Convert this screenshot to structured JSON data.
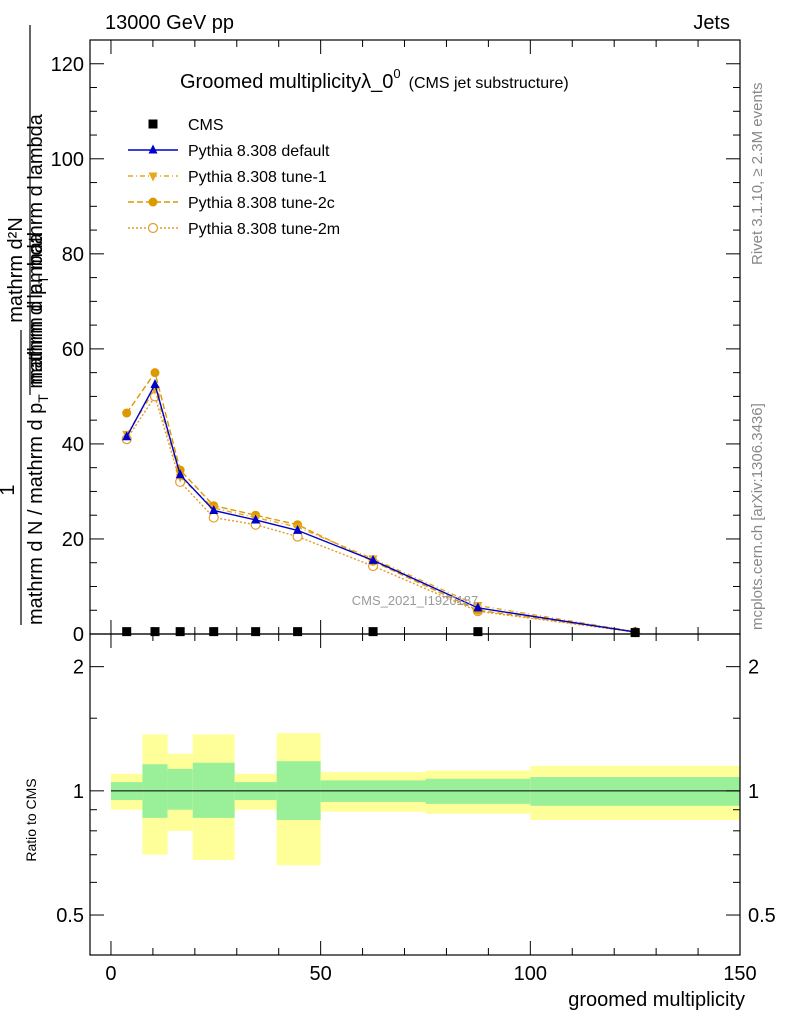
{
  "header": {
    "left": "13000 GeV pp",
    "right": "Jets"
  },
  "chart_data": {
    "type": "line",
    "title": "Groomed multiplicityλ_0",
    "title_superscript": "0",
    "title_suffix": "(CMS jet substructure)",
    "ylabel_numerator": "mathrm d²N",
    "ylabel_denominator_1": "mathrm d p",
    "ylabel_denominator_sub": "T",
    "ylabel_denominator_2": " mathrm d lambda",
    "ylabel_prefactor": "1",
    "ylabel_prefactor_den": "mathrm d N / mathrm d p",
    "ylabel_prefactor_sub": "T",
    "ylabel_prefactor_den_2": "mathrm d p",
    "ylabel_prefactor_sub_2": "T",
    "xlabel": "groomed multiplicity",
    "ratio_ylabel": "Ratio to CMS",
    "xlim": [
      -5,
      150
    ],
    "ylim": [
      0,
      125
    ],
    "ratio_ylim": [
      0.4,
      2.4
    ],
    "x_ticks": [
      "0",
      "50",
      "100",
      "150"
    ],
    "y_ticks": [
      "0",
      "20",
      "40",
      "60",
      "80",
      "100",
      "120"
    ],
    "ratio_ticks": [
      "0.5",
      "1",
      "2"
    ],
    "watermark": "CMS_2021_I1920187",
    "side_text_1": "Rivet 3.1.10, ≥ 2.3M events",
    "side_text_2": "mcplots.cern.ch [arXiv:1306.3436]",
    "legend": [
      "CMS",
      "Pythia 8.308 default",
      "Pythia 8.308 tune-1",
      "Pythia 8.308 tune-2c",
      "Pythia 8.308 tune-2m"
    ],
    "bins": [
      {
        "lo": 0,
        "hi": 7.5,
        "x": 3.75
      },
      {
        "lo": 7.5,
        "hi": 13.5,
        "x": 10.5
      },
      {
        "lo": 13.5,
        "hi": 19.5,
        "x": 16.5
      },
      {
        "lo": 19.5,
        "hi": 29.5,
        "x": 24.5
      },
      {
        "lo": 29.5,
        "hi": 39.5,
        "x": 34.5
      },
      {
        "lo": 39.5,
        "hi": 50,
        "x": 44.5
      },
      {
        "lo": 50,
        "hi": 75,
        "x": 62.5
      },
      {
        "lo": 75,
        "hi": 100,
        "x": 87.5
      },
      {
        "lo": 100,
        "hi": 150,
        "x": 125
      }
    ],
    "series": [
      {
        "name": "CMS",
        "color": "#000000",
        "marker": "square",
        "dash": "",
        "values": [
          0.5,
          0.5,
          0.5,
          0.5,
          0.5,
          0.5,
          0.5,
          0.5,
          0.3
        ]
      },
      {
        "name": "Pythia 8.308 default",
        "color": "#0000cc",
        "marker": "triangle-up",
        "dash": "",
        "values": [
          41.5,
          52.5,
          33.5,
          26.0,
          24.0,
          21.8,
          15.5,
          5.5,
          0.4
        ]
      },
      {
        "name": "Pythia 8.308 tune-1",
        "color": "#e8a817",
        "marker": "triangle-down",
        "dash": "5,3,1,3",
        "values": [
          42.0,
          51.5,
          33.0,
          26.5,
          24.5,
          22.5,
          15.8,
          6.0,
          0.5
        ]
      },
      {
        "name": "Pythia 8.308 tune-2c",
        "color": "#dd9900",
        "marker": "circle",
        "dash": "6,3",
        "values": [
          46.5,
          55.0,
          34.5,
          27.0,
          25.0,
          23.0,
          15.3,
          5.0,
          0.5
        ]
      },
      {
        "name": "Pythia 8.308 tune-2m",
        "color": "#e39b2d",
        "marker": "circle-open",
        "dash": "2,2",
        "values": [
          41.0,
          50.0,
          32.0,
          24.5,
          23.0,
          20.5,
          14.3,
          4.8,
          0.4
        ]
      }
    ],
    "ratio_bands": {
      "inner_color": "#99f099",
      "outer_color": "#ffff99",
      "inner": [
        [
          0.95,
          1.05
        ],
        [
          0.86,
          1.16
        ],
        [
          0.9,
          1.13
        ],
        [
          0.86,
          1.17
        ],
        [
          0.95,
          1.05
        ],
        [
          0.85,
          1.18
        ],
        [
          0.94,
          1.06
        ],
        [
          0.93,
          1.07
        ],
        [
          0.92,
          1.08
        ]
      ],
      "outer": [
        [
          0.9,
          1.1
        ],
        [
          0.7,
          1.37
        ],
        [
          0.8,
          1.23
        ],
        [
          0.68,
          1.37
        ],
        [
          0.9,
          1.1
        ],
        [
          0.66,
          1.38
        ],
        [
          0.89,
          1.11
        ],
        [
          0.88,
          1.12
        ],
        [
          0.85,
          1.15
        ]
      ]
    }
  }
}
